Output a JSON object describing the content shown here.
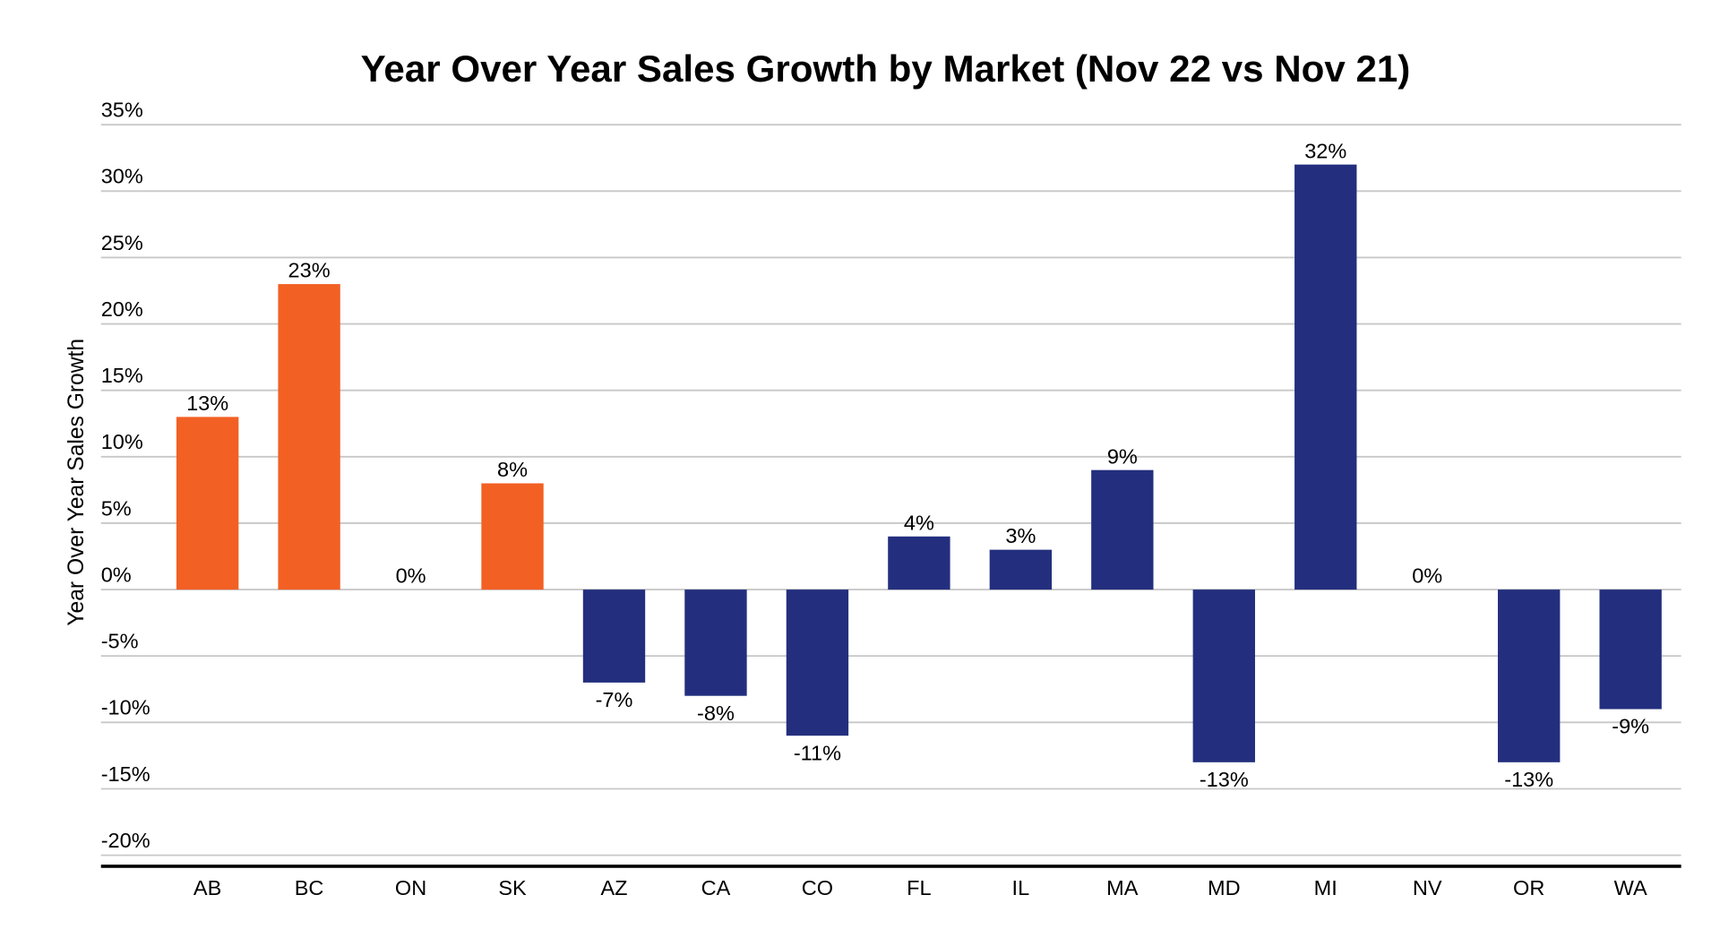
{
  "chart_data": {
    "type": "bar",
    "title": "Year Over Year Sales Growth by Market (Nov 22 vs Nov 21)",
    "xlabel": "",
    "ylabel": "Year Over Year Sales Growth",
    "ylim": [
      -20,
      35
    ],
    "yticks": [
      35,
      30,
      25,
      20,
      15,
      10,
      5,
      0,
      -5,
      -10,
      -15,
      -20
    ],
    "ytick_labels": [
      "35%",
      "30%",
      "25%",
      "20%",
      "15%",
      "10%",
      "5%",
      "0%",
      "-5%",
      "-10%",
      "-15%",
      "-20%"
    ],
    "grid": true,
    "categories": [
      "AB",
      "BC",
      "ON",
      "SK",
      "AZ",
      "CA",
      "CO",
      "FL",
      "IL",
      "MA",
      "MD",
      "MI",
      "NV",
      "OR",
      "WA"
    ],
    "values": [
      13,
      23,
      0,
      8,
      -7,
      -8,
      -11,
      4,
      3,
      9,
      -13,
      32,
      0,
      -13,
      -9
    ],
    "data_labels": [
      "13%",
      "23%",
      "0%",
      "8%",
      "-7%",
      "-8%",
      "-11%",
      "4%",
      "3%",
      "9%",
      "-13%",
      "32%",
      "0%",
      "-13%",
      "-9%"
    ],
    "groups": [
      "canada",
      "canada",
      "canada",
      "canada",
      "us",
      "us",
      "us",
      "us",
      "us",
      "us",
      "us",
      "us",
      "us",
      "us",
      "us"
    ],
    "colors": {
      "canada": "#F26024",
      "us": "#232F7E"
    }
  }
}
